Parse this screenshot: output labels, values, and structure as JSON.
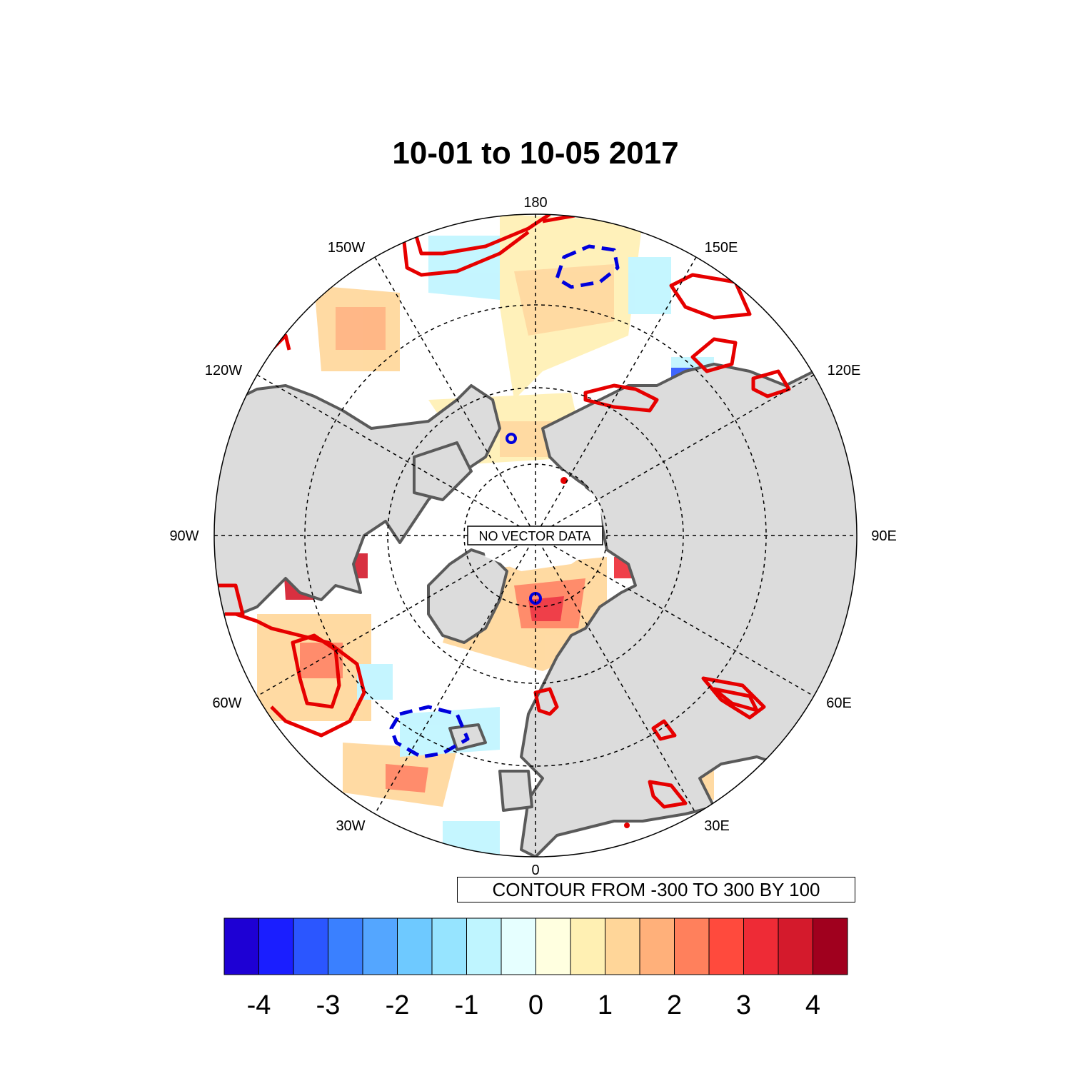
{
  "title": "10-01 to 10-05 2017",
  "longitude_labels": [
    "180",
    "150E",
    "120E",
    "90E",
    "60E",
    "30E",
    "0",
    "30W",
    "60W",
    "90W",
    "120W",
    "150W"
  ],
  "center_note": "NO VECTOR DATA",
  "contour_note": "CONTOUR FROM -300 TO 300 BY 100",
  "colorbar": {
    "colors": [
      "#1e00d4",
      "#1a1eff",
      "#2b56ff",
      "#3a80ff",
      "#54a6ff",
      "#6ec9ff",
      "#96e4ff",
      "#bff5ff",
      "#e6ffff",
      "#ffffe0",
      "#fff0b3",
      "#ffd699",
      "#ffb07a",
      "#ff805c",
      "#ff4a3d",
      "#ee2b36",
      "#d41a2c",
      "#a0001e"
    ],
    "tick_labels": [
      "-4",
      "-3",
      "-2",
      "-1",
      "0",
      "1",
      "2",
      "3",
      "4"
    ]
  },
  "colors": {
    "land": "#dcdcdc",
    "coast": "#5a5a5a",
    "positive_contour": "#e60000",
    "negative_contour": "#0000dd"
  }
}
